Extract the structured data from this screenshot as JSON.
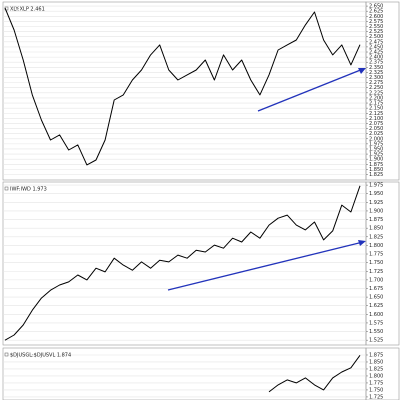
{
  "chart_data": [
    {
      "type": "line",
      "title": "XLY:XLP 2.461",
      "color": "#000000",
      "values": [
        2.641,
        2.533,
        2.386,
        2.215,
        2.092,
        1.994,
        2.019,
        1.945,
        1.97,
        1.872,
        1.896,
        1.994,
        2.19,
        2.215,
        2.288,
        2.337,
        2.411,
        2.46,
        2.337,
        2.288,
        2.313,
        2.337,
        2.386,
        2.288,
        2.411,
        2.337,
        2.386,
        2.288,
        2.215,
        2.313,
        2.435,
        2.46,
        2.484,
        2.558,
        2.621,
        2.484,
        2.411,
        2.46,
        2.362,
        2.461
      ],
      "ylim": [
        1.798,
        2.67
      ],
      "grid": true,
      "yticks": [
        {
          "value": 2.65,
          "label": "2.650"
        },
        2.625,
        {
          "value": 2.6,
          "label": "2.600"
        },
        2.575,
        {
          "value": 2.55,
          "label": "2.550"
        },
        2.525,
        {
          "value": 2.5,
          "label": "2.500"
        },
        2.475,
        {
          "value": 2.45,
          "label": "2.450"
        },
        2.425,
        {
          "value": 2.4,
          "label": "2.400"
        },
        2.375,
        {
          "value": 2.35,
          "label": "2.350"
        },
        2.325,
        {
          "value": 2.3,
          "label": "2.300"
        },
        2.275,
        {
          "value": 2.25,
          "label": "2.250"
        },
        2.225,
        {
          "value": 2.2,
          "label": "2.200"
        },
        2.175,
        {
          "value": 2.15,
          "label": "2.150"
        },
        2.125,
        {
          "value": 2.1,
          "label": "2.100"
        },
        2.075,
        {
          "value": 2.05,
          "label": "2.050"
        },
        2.025,
        {
          "value": 2,
          "label": "2.000"
        },
        1.975,
        {
          "value": 1.95,
          "label": "1.950"
        },
        1.925,
        {
          "value": 1.9,
          "label": "1.900"
        },
        1.875,
        {
          "value": 1.85,
          "label": "1.850"
        },
        1.825
      ]
    },
    {
      "type": "line",
      "title": "IWF:IWD 1.973",
      "color": "#000000",
      "values": [
        1.525,
        1.54,
        1.569,
        1.612,
        1.647,
        1.67,
        1.685,
        1.694,
        1.714,
        1.7,
        1.734,
        1.723,
        1.763,
        1.743,
        1.728,
        1.752,
        1.734,
        1.757,
        1.752,
        1.772,
        1.763,
        1.786,
        1.781,
        1.801,
        1.792,
        1.821,
        1.81,
        1.839,
        1.821,
        1.859,
        1.879,
        1.888,
        1.859,
        1.845,
        1.868,
        1.816,
        1.842,
        1.917,
        1.897,
        1.973
      ],
      "ylim": [
        1.511,
        1.984
      ],
      "grid": true,
      "yticks": [
        1.975,
        {
          "value": 1.95,
          "label": "1.950"
        },
        1.925,
        {
          "value": 1.9,
          "label": "1.900"
        },
        1.875,
        {
          "value": 1.85,
          "label": "1.850"
        },
        1.825,
        {
          "value": 1.8,
          "label": "1.800"
        },
        1.775,
        {
          "value": 1.75,
          "label": "1.750"
        },
        1.725,
        {
          "value": 1.7,
          "label": "1.700"
        },
        1.675,
        {
          "value": 1.65,
          "label": "1.650"
        },
        1.625,
        {
          "value": 1.6,
          "label": "1.600"
        },
        1.575,
        {
          "value": 1.55,
          "label": "1.550"
        },
        1.525
      ]
    },
    {
      "type": "line",
      "title": "$DJUSGL:$DJUSVL 1.874",
      "color": "#000000",
      "values": [
        null,
        null,
        null,
        null,
        null,
        null,
        null,
        null,
        null,
        null,
        null,
        null,
        null,
        null,
        null,
        null,
        null,
        null,
        null,
        null,
        null,
        null,
        null,
        null,
        null,
        null,
        null,
        null,
        null,
        1.743,
        1.768,
        1.786,
        1.775,
        1.793,
        1.768,
        1.75,
        1.793,
        1.814,
        1.829,
        1.874
      ],
      "ylim": [
        1.714,
        1.9
      ],
      "grid": true,
      "yticks": [
        1.875,
        {
          "value": 1.85,
          "label": "1.850"
        },
        1.825,
        {
          "value": 1.8,
          "label": "1.800"
        },
        1.775,
        {
          "value": 1.75,
          "label": "1.750"
        },
        1.725
      ]
    }
  ]
}
